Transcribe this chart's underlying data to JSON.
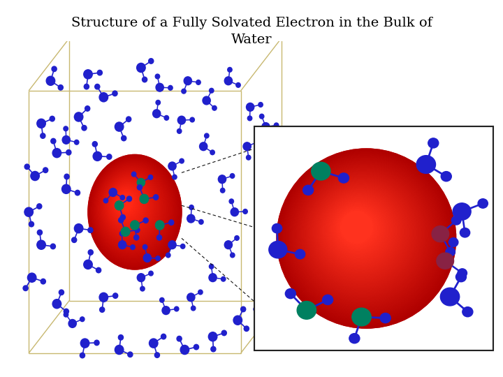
{
  "title": "Structure of a Fully Solvated Electron in the Bulk of\nWater",
  "title_fontsize": 14,
  "title_font": "serif",
  "background_color": "#ffffff",
  "fig_width": 7.2,
  "fig_height": 5.4,
  "box_color": "#c8b870",
  "water_color": "#2020cc",
  "oxygen_color_highlight": "#008060",
  "oxygen_color_magenta": "#882244",
  "electron_color_base": "#cc0000",
  "electron_color_bright": "#ff4444",
  "electron_color_dark": "#880000"
}
